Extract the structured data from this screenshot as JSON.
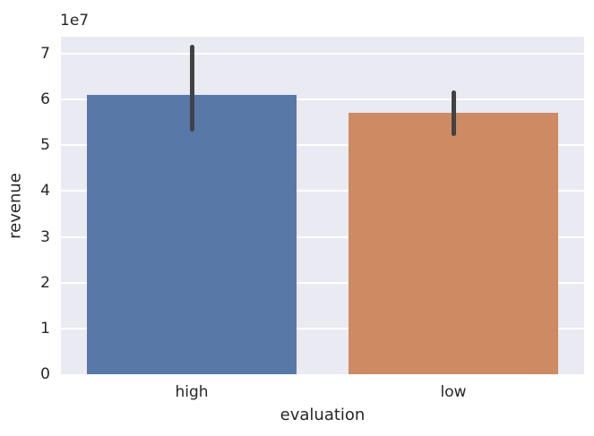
{
  "chart_data": {
    "type": "bar",
    "title": "",
    "xlabel": "evaluation",
    "ylabel": "revenue",
    "offset_label": "1e7",
    "categories": [
      "high",
      "low"
    ],
    "values": [
      61000000,
      57000000
    ],
    "errors": [
      [
        53000000,
        72000000
      ],
      [
        52000000,
        62000000
      ]
    ],
    "ylim": [
      0,
      73700000
    ],
    "yticks": [
      0,
      10000000,
      20000000,
      30000000,
      40000000,
      50000000,
      60000000,
      70000000
    ],
    "ytick_labels": [
      "0",
      "1",
      "2",
      "3",
      "4",
      "5",
      "6",
      "7"
    ],
    "bar_width_frac": 0.8,
    "bar_colors": [
      "#5878a8",
      "#cd8a63"
    ],
    "errorbar_color": "#424242",
    "plot_bg_color": "#eaeaf2",
    "grid_color": "#ffffff",
    "text_color": "#262626",
    "grid": true,
    "legend": "none"
  }
}
